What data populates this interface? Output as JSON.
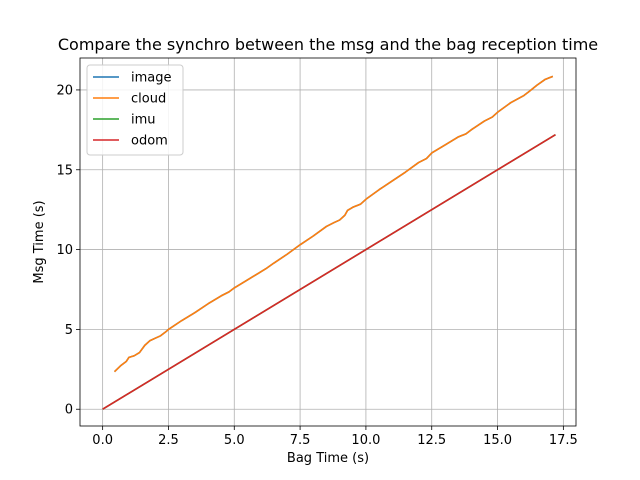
{
  "chart_data": {
    "type": "line",
    "title": "Compare the synchro between the msg and the bag reception time",
    "xlabel": "Bag Time (s)",
    "ylabel": "Msg Time (s)",
    "xlim": [
      -0.86,
      17.98
    ],
    "ylim": [
      -1.05,
      22.0
    ],
    "xticks": [
      0.0,
      2.5,
      5.0,
      7.5,
      10.0,
      12.5,
      15.0,
      17.5
    ],
    "xtick_labels": [
      "0.0",
      "2.5",
      "5.0",
      "7.5",
      "10.0",
      "12.5",
      "15.0",
      "17.5"
    ],
    "yticks": [
      0,
      5,
      10,
      15,
      20
    ],
    "ytick_labels": [
      "0",
      "5",
      "10",
      "15",
      "20"
    ],
    "grid": true,
    "legend_position": "top-left",
    "series": [
      {
        "name": "image",
        "color": "#1f77b4",
        "x": [
          0.45,
          0.7,
          0.9,
          1.0,
          1.2,
          1.4,
          1.6,
          1.8,
          2.0,
          2.2,
          2.4,
          2.5,
          3.0,
          3.5,
          4.0,
          4.5,
          4.8,
          5.0,
          5.5,
          5.9,
          6.0,
          6.2,
          6.5,
          7.0,
          7.5,
          8.0,
          8.5,
          8.8,
          9.0,
          9.2,
          9.3,
          9.5,
          9.8,
          10.0,
          10.5,
          11.0,
          11.5,
          12.0,
          12.3,
          12.5,
          13.0,
          13.5,
          13.8,
          14.0,
          14.5,
          14.8,
          15.0,
          15.5,
          16.0,
          16.2,
          16.5,
          16.8,
          17.1
        ],
        "y": [
          2.35,
          2.75,
          3.0,
          3.25,
          3.35,
          3.55,
          4.0,
          4.3,
          4.45,
          4.6,
          4.85,
          5.0,
          5.55,
          6.05,
          6.6,
          7.1,
          7.35,
          7.6,
          8.1,
          8.5,
          8.6,
          8.8,
          9.15,
          9.7,
          10.3,
          10.85,
          11.45,
          11.7,
          11.85,
          12.15,
          12.45,
          12.65,
          12.85,
          13.15,
          13.75,
          14.3,
          14.85,
          15.45,
          15.7,
          16.05,
          16.55,
          17.05,
          17.25,
          17.5,
          18.05,
          18.3,
          18.6,
          19.2,
          19.65,
          19.9,
          20.3,
          20.65,
          20.85
        ]
      },
      {
        "name": "cloud",
        "color": "#ff7f0e",
        "x": [
          0.45,
          0.7,
          0.9,
          1.0,
          1.2,
          1.4,
          1.6,
          1.8,
          2.0,
          2.2,
          2.4,
          2.5,
          3.0,
          3.5,
          4.0,
          4.5,
          4.8,
          5.0,
          5.5,
          5.9,
          6.0,
          6.2,
          6.5,
          7.0,
          7.5,
          8.0,
          8.5,
          8.8,
          9.0,
          9.2,
          9.3,
          9.5,
          9.8,
          10.0,
          10.5,
          11.0,
          11.5,
          12.0,
          12.3,
          12.5,
          13.0,
          13.5,
          13.8,
          14.0,
          14.5,
          14.8,
          15.0,
          15.5,
          16.0,
          16.2,
          16.5,
          16.8,
          17.1
        ],
        "y": [
          2.35,
          2.75,
          3.0,
          3.25,
          3.35,
          3.55,
          4.0,
          4.3,
          4.45,
          4.6,
          4.85,
          5.0,
          5.55,
          6.05,
          6.6,
          7.1,
          7.35,
          7.6,
          8.1,
          8.5,
          8.6,
          8.8,
          9.15,
          9.7,
          10.3,
          10.85,
          11.45,
          11.7,
          11.85,
          12.15,
          12.45,
          12.65,
          12.85,
          13.15,
          13.75,
          14.3,
          14.85,
          15.45,
          15.7,
          16.05,
          16.55,
          17.05,
          17.25,
          17.5,
          18.05,
          18.3,
          18.6,
          19.2,
          19.65,
          19.9,
          20.3,
          20.65,
          20.85
        ]
      },
      {
        "name": "imu",
        "color": "#2ca02c",
        "x": [
          0.0,
          17.2
        ],
        "y": [
          0.0,
          17.2
        ]
      },
      {
        "name": "odom",
        "color": "#d62728",
        "x": [
          0.0,
          17.2
        ],
        "y": [
          0.0,
          17.2
        ]
      }
    ]
  }
}
